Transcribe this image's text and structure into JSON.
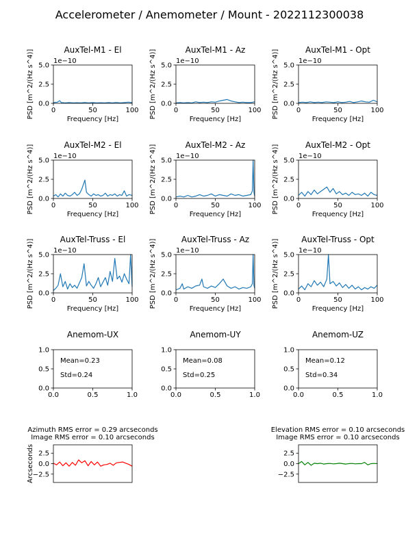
{
  "figure": {
    "title": "Accelerometer / Anemometer / Mount - 2022112300038"
  },
  "colors": {
    "psd": "#1f77b4",
    "azimuth": "#ff0000",
    "elevation": "#008000",
    "axes": "#000000"
  },
  "chart_data": [
    {
      "type": "line",
      "title": "AuxTel-M1 - El",
      "xlabel": "Frequency [Hz]",
      "ylabel": "PSD [m^2/(Hz s^4)]",
      "offset_label": "1e−10",
      "xlim": [
        0,
        100
      ],
      "ylim": [
        0,
        5
      ],
      "x_ticks": [
        0,
        50,
        100
      ],
      "x_tick_labels": [
        "0",
        "50",
        "100"
      ],
      "y_ticks": [
        0,
        2.5,
        5
      ],
      "y_tick_labels": [
        "0.0",
        "2.5",
        "5.0"
      ],
      "series": [
        {
          "x": [
            0,
            5,
            8,
            10,
            15,
            20,
            25,
            30,
            35,
            40,
            45,
            50,
            55,
            60,
            65,
            70,
            75,
            80,
            85,
            90,
            95,
            100
          ],
          "values": [
            0.1,
            0.15,
            0.35,
            0.1,
            0.05,
            0.1,
            0.05,
            0.08,
            0.05,
            0.12,
            0.05,
            0.1,
            0.05,
            0.08,
            0.05,
            0.1,
            0.05,
            0.12,
            0.05,
            0.1,
            0.15,
            0.1
          ]
        }
      ]
    },
    {
      "type": "line",
      "title": "AuxTel-M1 - Az",
      "xlabel": "Frequency [Hz]",
      "ylabel": "PSD [m^2/(Hz s^4)]",
      "offset_label": "1e−10",
      "xlim": [
        0,
        100
      ],
      "ylim": [
        0,
        5
      ],
      "x_ticks": [
        0,
        50,
        100
      ],
      "x_tick_labels": [
        "0",
        "50",
        "100"
      ],
      "y_ticks": [
        0,
        2.5,
        5
      ],
      "y_tick_labels": [
        "0.0",
        "2.5",
        "5.0"
      ],
      "series": [
        {
          "x": [
            0,
            5,
            10,
            15,
            20,
            25,
            30,
            35,
            40,
            45,
            50,
            55,
            60,
            65,
            70,
            75,
            80,
            85,
            90,
            95,
            100
          ],
          "values": [
            0.05,
            0.1,
            0.05,
            0.1,
            0.05,
            0.2,
            0.1,
            0.15,
            0.1,
            0.2,
            0.15,
            0.3,
            0.4,
            0.5,
            0.3,
            0.2,
            0.1,
            0.15,
            0.1,
            0.1,
            0.2
          ]
        }
      ]
    },
    {
      "type": "line",
      "title": "AuxTel-M1 - Opt",
      "xlabel": "Frequency [Hz]",
      "ylabel": "PSD [m^2/(Hz s^4)]",
      "offset_label": "1e−10",
      "xlim": [
        0,
        100
      ],
      "ylim": [
        0,
        5
      ],
      "x_ticks": [
        0,
        50,
        100
      ],
      "x_tick_labels": [
        "0",
        "50",
        "100"
      ],
      "y_ticks": [
        0,
        2.5,
        5
      ],
      "y_tick_labels": [
        "0.0",
        "2.5",
        "5.0"
      ],
      "series": [
        {
          "x": [
            0,
            5,
            10,
            15,
            20,
            25,
            30,
            35,
            40,
            45,
            50,
            55,
            60,
            65,
            70,
            75,
            80,
            85,
            90,
            95,
            100
          ],
          "values": [
            0.1,
            0.15,
            0.1,
            0.2,
            0.1,
            0.15,
            0.1,
            0.2,
            0.15,
            0.1,
            0.2,
            0.1,
            0.15,
            0.25,
            0.1,
            0.2,
            0.3,
            0.2,
            0.15,
            0.4,
            0.2
          ]
        }
      ]
    },
    {
      "type": "line",
      "title": "AuxTel-M2 - El",
      "xlabel": "Frequency [Hz]",
      "ylabel": "PSD [m^2/(Hz s^4)]",
      "offset_label": "1e−10",
      "xlim": [
        0,
        100
      ],
      "ylim": [
        0,
        5
      ],
      "x_ticks": [
        0,
        50,
        100
      ],
      "x_tick_labels": [
        "0",
        "50",
        "100"
      ],
      "y_ticks": [
        0,
        2.5,
        5
      ],
      "y_tick_labels": [
        "0.0",
        "2.5",
        "5.0"
      ],
      "series": [
        {
          "x": [
            0,
            3,
            6,
            9,
            12,
            15,
            18,
            21,
            24,
            27,
            30,
            33,
            36,
            38,
            40,
            42,
            45,
            48,
            51,
            54,
            57,
            60,
            63,
            66,
            69,
            72,
            75,
            78,
            81,
            84,
            87,
            90,
            93,
            96,
            100
          ],
          "values": [
            0.3,
            0.5,
            0.2,
            0.6,
            0.3,
            0.7,
            0.4,
            0.3,
            0.5,
            0.8,
            0.4,
            0.6,
            1.2,
            1.8,
            2.4,
            0.8,
            0.5,
            0.3,
            0.6,
            0.4,
            0.5,
            0.3,
            0.4,
            0.7,
            0.3,
            0.5,
            0.4,
            0.6,
            0.3,
            0.5,
            0.4,
            1.0,
            0.3,
            0.5,
            0.4
          ]
        }
      ]
    },
    {
      "type": "line",
      "title": "AuxTel-M2 - Az",
      "xlabel": "Frequency [Hz]",
      "ylabel": "PSD [m^2/(Hz s^4)]",
      "offset_label": "1e−10",
      "xlim": [
        0,
        100
      ],
      "ylim": [
        0,
        5
      ],
      "x_ticks": [
        0,
        50,
        100
      ],
      "x_tick_labels": [
        "0",
        "50",
        "100"
      ],
      "y_ticks": [
        0,
        2.5,
        5
      ],
      "y_tick_labels": [
        "0.0",
        "2.5",
        "5.0"
      ],
      "series": [
        {
          "x": [
            0,
            5,
            10,
            15,
            20,
            25,
            30,
            35,
            40,
            45,
            50,
            55,
            60,
            65,
            70,
            75,
            80,
            85,
            90,
            95,
            97,
            98,
            99,
            100
          ],
          "values": [
            0.2,
            0.3,
            0.2,
            0.4,
            0.2,
            0.3,
            0.5,
            0.3,
            0.4,
            0.6,
            0.3,
            0.5,
            0.4,
            0.3,
            0.6,
            0.4,
            0.5,
            0.3,
            0.4,
            0.5,
            1.0,
            5.0,
            0.8,
            0.3
          ]
        }
      ]
    },
    {
      "type": "line",
      "title": "AuxTel-M2 - Opt",
      "xlabel": "Frequency [Hz]",
      "ylabel": "PSD [m^2/(Hz s^4)]",
      "offset_label": "1e−10",
      "xlim": [
        0,
        100
      ],
      "ylim": [
        0,
        5
      ],
      "x_ticks": [
        0,
        50,
        100
      ],
      "x_tick_labels": [
        "0",
        "50",
        "100"
      ],
      "y_ticks": [
        0,
        2.5,
        5
      ],
      "y_tick_labels": [
        "0.0",
        "2.5",
        "5.0"
      ],
      "series": [
        {
          "x": [
            0,
            4,
            8,
            12,
            16,
            20,
            24,
            28,
            32,
            36,
            40,
            44,
            48,
            52,
            56,
            60,
            64,
            68,
            72,
            76,
            80,
            84,
            88,
            92,
            96,
            100
          ],
          "values": [
            0.4,
            0.8,
            0.3,
            0.9,
            0.5,
            1.1,
            0.6,
            0.9,
            1.2,
            1.5,
            0.8,
            1.3,
            0.6,
            0.9,
            0.5,
            0.7,
            0.4,
            0.8,
            0.5,
            0.6,
            0.4,
            0.7,
            0.3,
            0.8,
            0.5,
            0.4
          ]
        }
      ]
    },
    {
      "type": "line",
      "title": "AuxTel-Truss - El",
      "xlabel": "Frequency [Hz]",
      "ylabel": "PSD [m^2/(Hz s^4)]",
      "offset_label": "1e−10",
      "xlim": [
        0,
        100
      ],
      "ylim": [
        0,
        5
      ],
      "x_ticks": [
        0,
        50,
        100
      ],
      "x_tick_labels": [
        "0",
        "50",
        "100"
      ],
      "y_ticks": [
        0,
        2.5,
        5
      ],
      "y_tick_labels": [
        "0.0",
        "2.5",
        "5.0"
      ],
      "series": [
        {
          "x": [
            0,
            3,
            6,
            9,
            12,
            15,
            18,
            21,
            24,
            27,
            30,
            33,
            36,
            39,
            42,
            45,
            48,
            51,
            54,
            57,
            60,
            63,
            66,
            69,
            72,
            75,
            78,
            81,
            84,
            87,
            90,
            93,
            96,
            98,
            100
          ],
          "values": [
            0.3,
            0.6,
            1.0,
            2.5,
            0.8,
            1.5,
            0.5,
            1.2,
            0.7,
            1.0,
            0.6,
            1.3,
            2.0,
            3.8,
            0.9,
            1.5,
            1.0,
            0.6,
            1.2,
            2.0,
            0.8,
            1.4,
            2.0,
            1.0,
            2.8,
            1.5,
            4.5,
            1.8,
            2.2,
            1.4,
            2.5,
            1.8,
            1.2,
            5.0,
            0.8
          ]
        }
      ]
    },
    {
      "type": "line",
      "title": "AuxTel-Truss - Az",
      "xlabel": "Frequency [Hz]",
      "ylabel": "PSD [m^2/(Hz s^4)]",
      "offset_label": "1e−10",
      "xlim": [
        0,
        100
      ],
      "ylim": [
        0,
        5
      ],
      "x_ticks": [
        0,
        50,
        100
      ],
      "x_tick_labels": [
        "0",
        "50",
        "100"
      ],
      "y_ticks": [
        0,
        2.5,
        5
      ],
      "y_tick_labels": [
        "0.0",
        "2.5",
        "5.0"
      ],
      "series": [
        {
          "x": [
            0,
            5,
            8,
            10,
            15,
            20,
            25,
            30,
            33,
            35,
            40,
            45,
            50,
            55,
            60,
            65,
            70,
            75,
            80,
            85,
            90,
            95,
            97,
            98,
            99,
            100
          ],
          "values": [
            0.4,
            0.6,
            1.2,
            0.5,
            0.8,
            0.6,
            0.9,
            1.0,
            1.8,
            0.8,
            0.6,
            0.9,
            0.7,
            1.2,
            1.8,
            0.9,
            0.6,
            0.8,
            0.5,
            0.7,
            0.6,
            0.8,
            1.2,
            5.0,
            1.0,
            0.6
          ]
        }
      ]
    },
    {
      "type": "line",
      "title": "AuxTel-Truss - Opt",
      "xlabel": "Frequency [Hz]",
      "ylabel": "PSD [m^2/(Hz s^4)]",
      "offset_label": "1e−10",
      "xlim": [
        0,
        100
      ],
      "ylim": [
        0,
        5
      ],
      "x_ticks": [
        0,
        50,
        100
      ],
      "x_tick_labels": [
        "0",
        "50",
        "100"
      ],
      "y_ticks": [
        0,
        2.5,
        5
      ],
      "y_tick_labels": [
        "0.0",
        "2.5",
        "5.0"
      ],
      "series": [
        {
          "x": [
            0,
            4,
            8,
            12,
            16,
            20,
            24,
            28,
            32,
            36,
            38,
            40,
            44,
            48,
            52,
            56,
            60,
            64,
            68,
            72,
            76,
            80,
            84,
            88,
            92,
            96,
            100
          ],
          "values": [
            0.5,
            0.9,
            0.4,
            1.2,
            0.8,
            1.6,
            1.0,
            1.4,
            0.8,
            1.8,
            5.0,
            1.2,
            1.5,
            0.9,
            1.3,
            0.7,
            1.1,
            0.6,
            1.0,
            0.5,
            0.8,
            0.4,
            0.7,
            0.5,
            0.8,
            0.6,
            1.0
          ]
        }
      ]
    },
    {
      "type": "scatter",
      "title": "Anemom-UX",
      "xlim": [
        0,
        1
      ],
      "ylim": [
        0,
        1
      ],
      "x_ticks": [
        0,
        0.5,
        1
      ],
      "x_tick_labels": [
        "0.0",
        "0.5",
        "1.0"
      ],
      "y_ticks": [
        0,
        0.5,
        1
      ],
      "y_tick_labels": [
        "0.0",
        "0.5",
        "1.0"
      ],
      "annotations": [
        "Mean=0.23",
        "Std=0.24"
      ],
      "series": []
    },
    {
      "type": "scatter",
      "title": "Anemom-UY",
      "xlim": [
        0,
        1
      ],
      "ylim": [
        0,
        1
      ],
      "x_ticks": [
        0,
        0.5,
        1
      ],
      "x_tick_labels": [
        "0.0",
        "0.5",
        "1.0"
      ],
      "y_ticks": [
        0,
        0.5,
        1
      ],
      "y_tick_labels": [
        "0.0",
        "0.5",
        "1.0"
      ],
      "annotations": [
        "Mean=0.08",
        "Std=0.25"
      ],
      "series": []
    },
    {
      "type": "scatter",
      "title": "Anemom-UZ",
      "xlim": [
        0,
        1
      ],
      "ylim": [
        0,
        1
      ],
      "x_ticks": [
        0,
        0.5,
        1
      ],
      "x_tick_labels": [
        "0.0",
        "0.5",
        "1.0"
      ],
      "y_ticks": [
        0,
        0.5,
        1
      ],
      "y_tick_labels": [
        "0.0",
        "0.5",
        "1.0"
      ],
      "annotations": [
        "Mean=0.12",
        "Std=0.34"
      ],
      "series": []
    },
    {
      "type": "line",
      "title": "Azimuth RMS error = 0.29 arcseconds",
      "subtitle": "Image RMS error = 0.10 arcseconds",
      "ylabel": "Arcseconds",
      "xlim": [
        0,
        100
      ],
      "ylim": [
        -4.5,
        4.5
      ],
      "y_ticks": [
        -2.5,
        0,
        2.5
      ],
      "y_tick_labels": [
        "−2.5",
        "0.0",
        "2.5"
      ],
      "series": [
        {
          "x": [
            0,
            4,
            8,
            12,
            16,
            20,
            24,
            28,
            32,
            36,
            40,
            44,
            48,
            52,
            56,
            60,
            64,
            68,
            72,
            76,
            80,
            84,
            88,
            92,
            96,
            100
          ],
          "values": [
            0.1,
            -0.3,
            0.4,
            -0.5,
            0.2,
            -0.6,
            0.3,
            -0.4,
            0.9,
            0.2,
            0.7,
            -0.5,
            0.5,
            -0.3,
            0.4,
            -0.6,
            -0.3,
            -0.2,
            0.1,
            -0.4,
            0.2,
            0.3,
            0.4,
            0.1,
            -0.2,
            -0.6
          ]
        }
      ]
    },
    {
      "type": "line",
      "title": "Elevation RMS error = 0.10 arcseconds",
      "subtitle": "Image RMS error = 0.10 arcseconds",
      "xlim": [
        0,
        100
      ],
      "ylim": [
        -4.5,
        4.5
      ],
      "y_ticks": [
        -2.5,
        0,
        2.5
      ],
      "y_tick_labels": [
        "−2.5",
        "0.0",
        "2.5"
      ],
      "series": [
        {
          "x": [
            0,
            4,
            8,
            12,
            16,
            20,
            24,
            28,
            32,
            36,
            40,
            44,
            48,
            52,
            56,
            60,
            64,
            68,
            72,
            76,
            80,
            84,
            88,
            92,
            96,
            100
          ],
          "values": [
            0.0,
            0.5,
            -0.3,
            0.3,
            -0.4,
            0.1,
            0.0,
            0.1,
            -0.1,
            0.0,
            0.05,
            -0.05,
            0.0,
            0.1,
            0.0,
            -0.1,
            0.0,
            0.05,
            -0.05,
            0.0,
            0.0,
            0.3,
            -0.3,
            0.0,
            0.05,
            0.0
          ]
        }
      ]
    }
  ]
}
